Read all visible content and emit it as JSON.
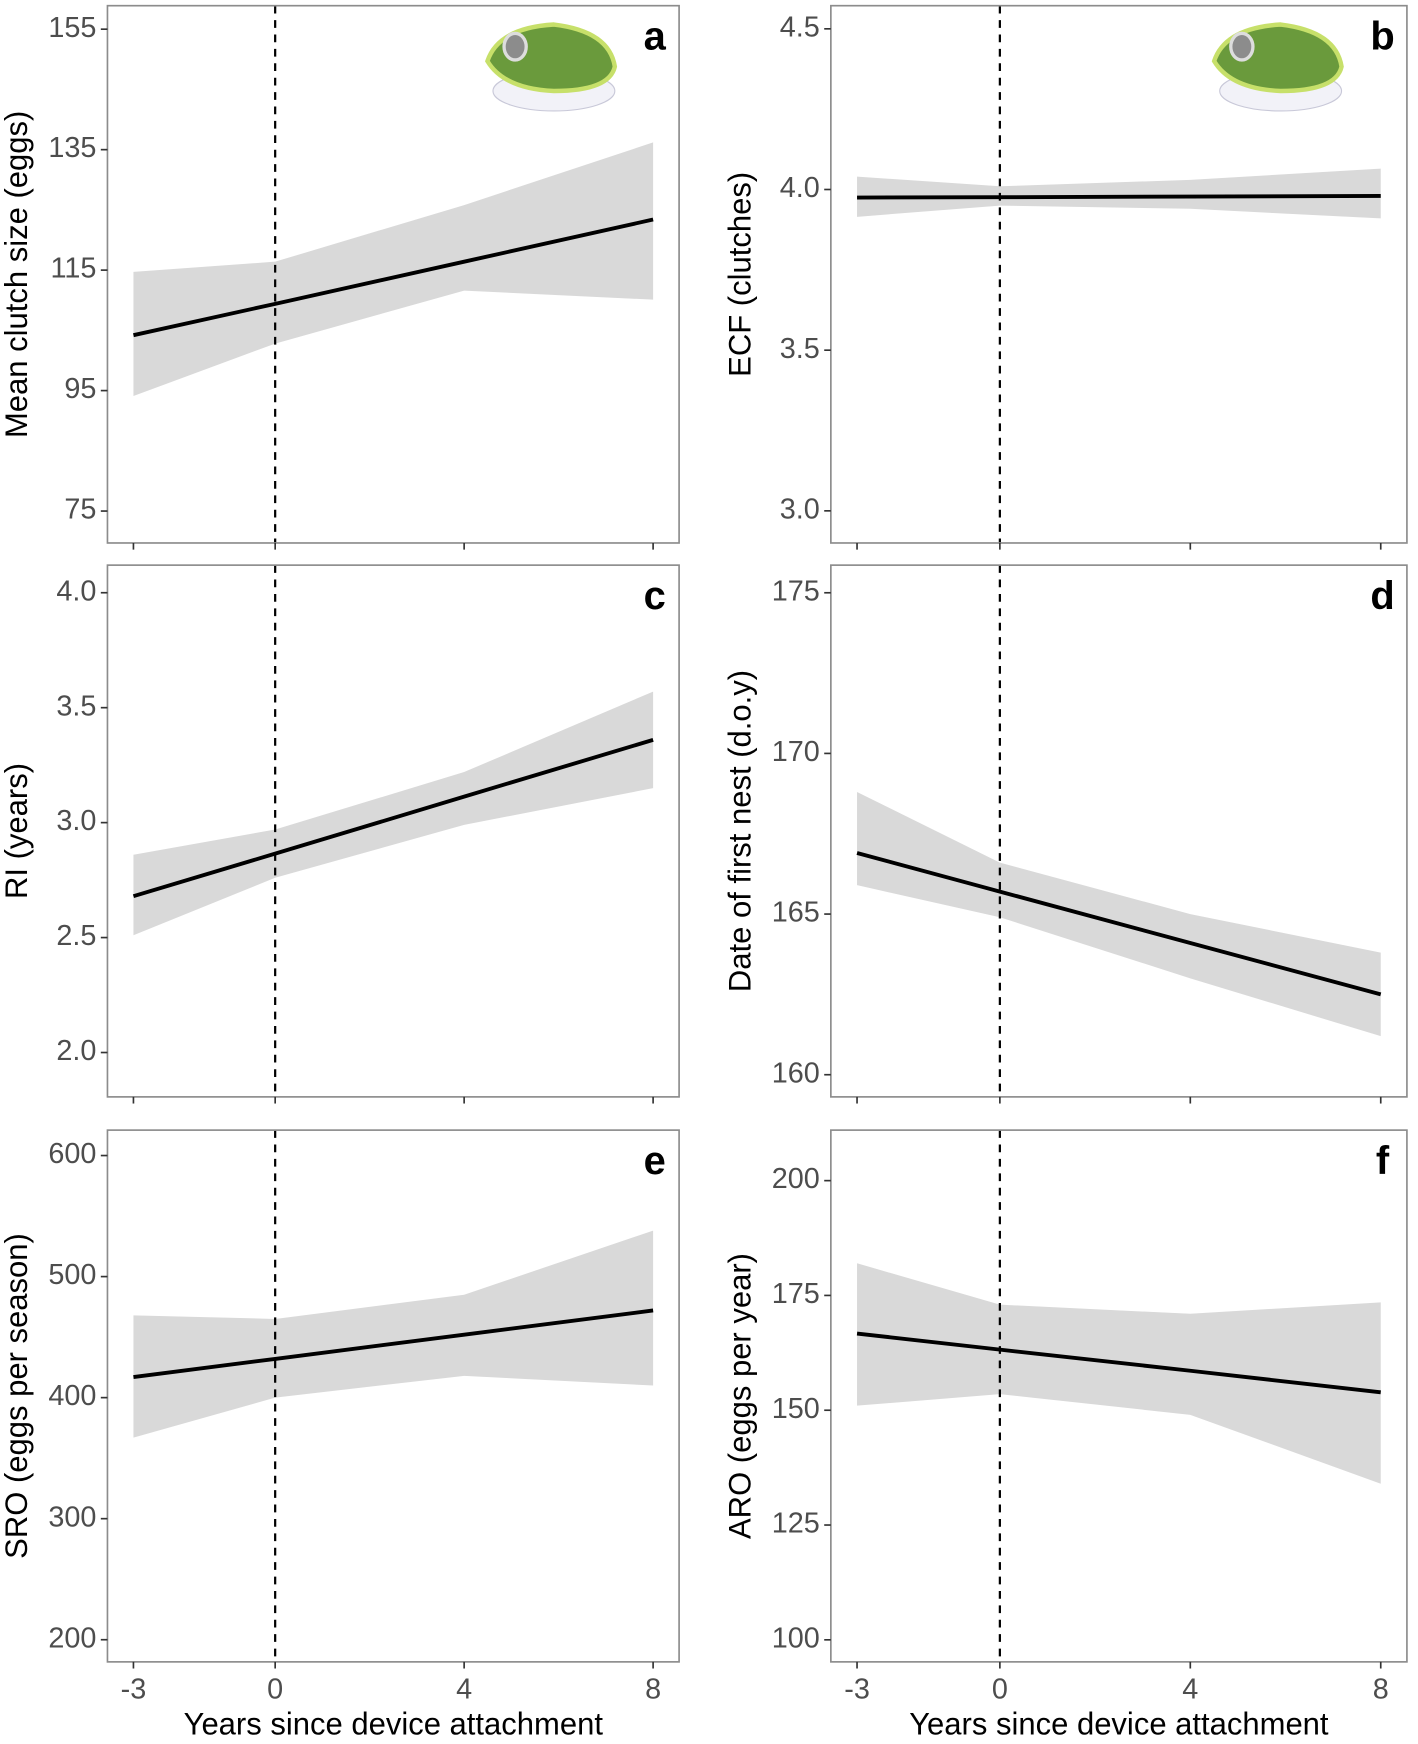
{
  "chart_data": [
    {
      "type": "line",
      "label": "a",
      "ylabel": "Mean clutch size (eggs)",
      "x": [
        -3,
        0,
        4,
        8
      ],
      "values": [
        104.2,
        109.4,
        116.4,
        123.4
      ],
      "lower": [
        94.1,
        102.8,
        111.6,
        110.1
      ],
      "upper": [
        114.7,
        116.4,
        125.8,
        136.2
      ],
      "color": "#000000",
      "band_color": "#d9d9d9",
      "vline": 0,
      "xlim": [
        -3.55,
        8.55
      ],
      "ylim": [
        69.7,
        158.9
      ],
      "xticks": [
        -3,
        0,
        4,
        8
      ],
      "yticks": [
        75,
        95,
        115,
        135,
        155
      ]
    },
    {
      "type": "line",
      "label": "b",
      "ylabel": "ECF (clutches)",
      "x": [
        -3,
        0,
        4,
        8
      ],
      "values": [
        3.975,
        3.976,
        3.978,
        3.98
      ],
      "lower": [
        3.915,
        3.95,
        3.94,
        3.91
      ],
      "upper": [
        4.04,
        4.01,
        4.03,
        4.065
      ],
      "color": "#000000",
      "band_color": "#d9d9d9",
      "vline": 0,
      "xlim": [
        -3.55,
        8.55
      ],
      "ylim": [
        2.9,
        4.572
      ],
      "xticks": [
        -3,
        0,
        4,
        8
      ],
      "yticks": [
        {
          "value": 3,
          "label": "3.0"
        },
        3.5,
        {
          "value": 4,
          "label": "4.0"
        },
        4.5
      ]
    },
    {
      "type": "line",
      "label": "c",
      "ylabel": "RI (years)",
      "x": [
        -3,
        0,
        4,
        8
      ],
      "values": [
        2.68,
        2.865,
        3.113,
        3.36
      ],
      "lower": [
        2.51,
        2.76,
        2.99,
        3.15
      ],
      "upper": [
        2.86,
        2.97,
        3.22,
        3.57
      ],
      "color": "#000000",
      "band_color": "#d9d9d9",
      "vline": 0,
      "xlim": [
        -3.55,
        8.55
      ],
      "ylim": [
        1.807,
        4.12
      ],
      "xticks": [
        -3,
        0,
        4,
        8
      ],
      "yticks": [
        {
          "value": 2,
          "label": "2.0"
        },
        2.5,
        {
          "value": 3,
          "label": "3.0"
        },
        3.5,
        {
          "value": 4,
          "label": "4.0"
        }
      ]
    },
    {
      "type": "line",
      "label": "d",
      "ylabel": "Date of first nest (d.o.y)",
      "x": [
        -3,
        0,
        4,
        8
      ],
      "values": [
        166.9,
        165.7,
        164.1,
        162.5
      ],
      "lower": [
        165.9,
        164.9,
        163.0,
        161.2
      ],
      "upper": [
        168.8,
        166.6,
        165.0,
        163.8
      ],
      "color": "#000000",
      "band_color": "#d9d9d9",
      "vline": 0,
      "xlim": [
        -3.55,
        8.55
      ],
      "ylim": [
        159.31,
        175.86
      ],
      "xticks": [
        -3,
        0,
        4,
        8
      ],
      "yticks": [
        160,
        165,
        170,
        175
      ]
    },
    {
      "type": "line",
      "label": "e",
      "ylabel": "SRO (eggs per season)",
      "xlabel": "Years since device attachment",
      "x": [
        -3,
        0,
        4,
        8
      ],
      "values": [
        417,
        432,
        452,
        472
      ],
      "lower": [
        367,
        400,
        418,
        410
      ],
      "upper": [
        468,
        465,
        485,
        538
      ],
      "color": "#000000",
      "band_color": "#d9d9d9",
      "vline": 0,
      "xlim": [
        -3.55,
        8.55
      ],
      "ylim": [
        181.7,
        621
      ],
      "xticks": [
        -3,
        0,
        4,
        8
      ],
      "yticks": [
        200,
        300,
        400,
        500,
        600
      ]
    },
    {
      "type": "line",
      "label": "f",
      "ylabel": "ARO (eggs per year)",
      "xlabel": "Years since device attachment",
      "x": [
        -3,
        0,
        4,
        8
      ],
      "values": [
        166.7,
        163.2,
        158.6,
        153.9
      ],
      "lower": [
        151,
        153.5,
        149,
        134
      ],
      "upper": [
        182,
        173,
        171,
        173.5
      ],
      "color": "#000000",
      "band_color": "#d9d9d9",
      "vline": 0,
      "xlim": [
        -3.55,
        8.55
      ],
      "ylim": [
        95.2,
        211
      ],
      "xticks": [
        -3,
        0,
        4,
        8
      ],
      "yticks": [
        100,
        125,
        150,
        175,
        200
      ]
    }
  ]
}
